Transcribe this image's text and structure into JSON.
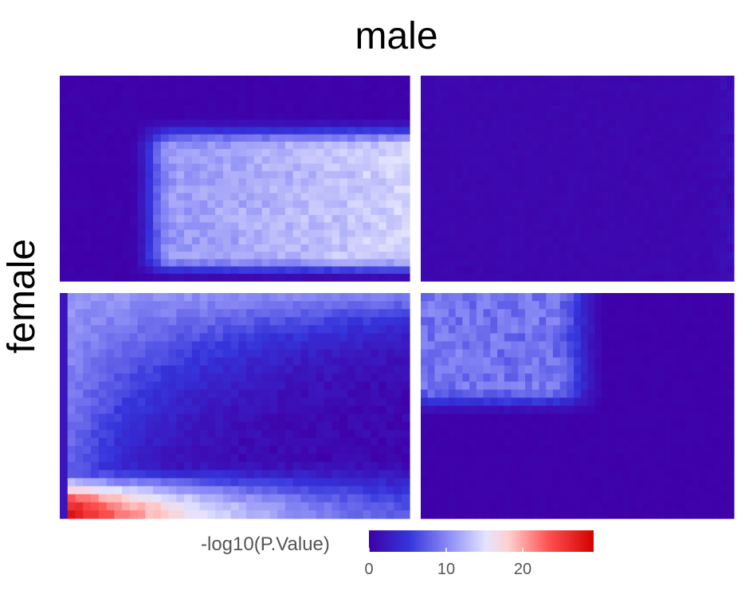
{
  "chart_data": {
    "type": "heatmap",
    "facet_column_title": "male",
    "facet_row_title": "female",
    "panels": [
      {
        "row": 1,
        "col": 1,
        "pattern": "broad high-value block in the right and middle, low elsewhere",
        "peak_value": 14
      },
      {
        "row": 1,
        "col": 2,
        "pattern": "uniformly low",
        "peak_value": 2
      },
      {
        "row": 2,
        "col": 1,
        "pattern": "L-shaped ridge along the left and bottom edges, peaking bottom-left",
        "peak_value": 29
      },
      {
        "row": 2,
        "col": 2,
        "pattern": "moderate block in the upper-left",
        "peak_value": 10
      }
    ],
    "legend": {
      "title": "-log10(P.Value)",
      "ticks": [
        0,
        10,
        20
      ],
      "range": [
        0,
        29
      ],
      "colors": [
        "#3f00a8",
        "#ffffff",
        "#d40000"
      ]
    },
    "grid": false
  }
}
